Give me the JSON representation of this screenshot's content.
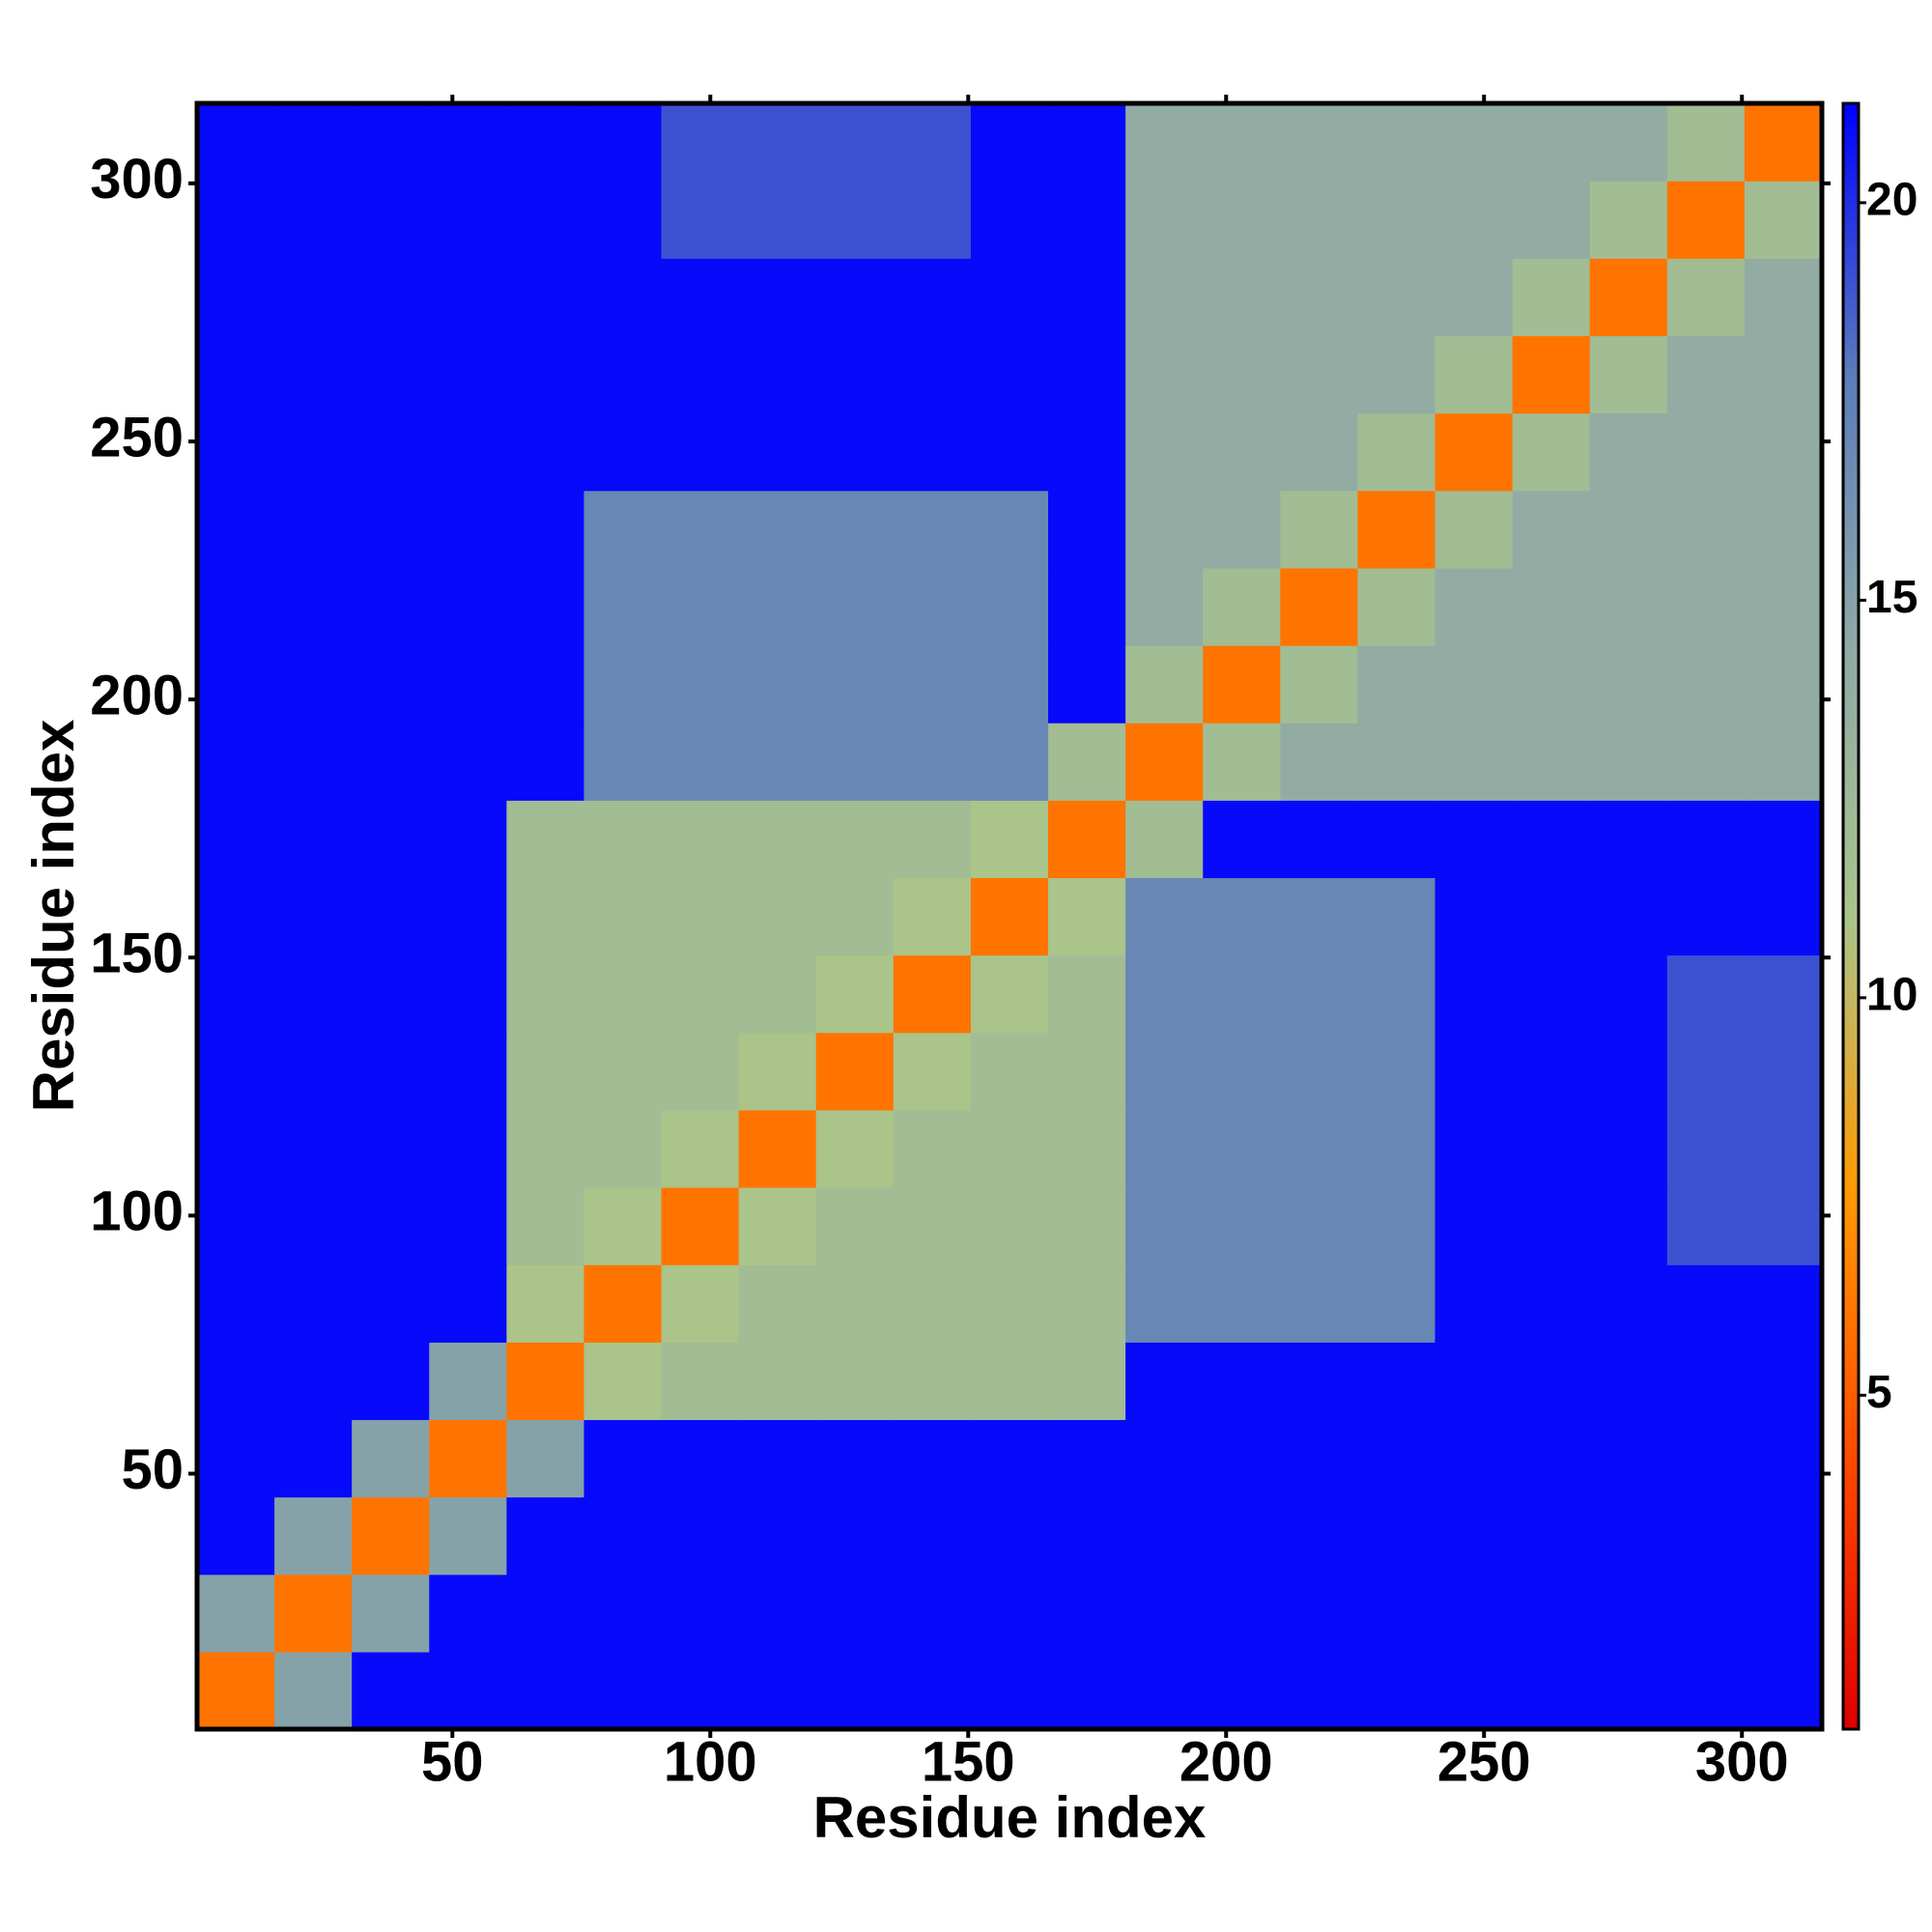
{
  "chart_data": {
    "type": "heatmap",
    "x_label": "Residue index",
    "y_label": "Residue index",
    "x": [
      8,
      23,
      38,
      53,
      68,
      83,
      98,
      113,
      128,
      143,
      158,
      173,
      188,
      203,
      218,
      233,
      248,
      263,
      278,
      293,
      308
    ],
    "y": [
      8,
      23,
      38,
      53,
      68,
      83,
      98,
      113,
      128,
      143,
      158,
      173,
      188,
      203,
      218,
      233,
      248,
      263,
      278,
      293,
      308
    ],
    "z": [
      [
        6,
        15,
        21,
        21,
        21,
        21,
        21,
        21,
        21,
        21,
        21,
        21,
        21,
        21,
        21,
        21,
        21,
        21,
        21,
        21,
        21
      ],
      [
        15,
        6,
        15,
        21,
        21,
        21,
        21,
        21,
        21,
        21,
        21,
        21,
        21,
        21,
        21,
        21,
        21,
        21,
        21,
        21,
        21
      ],
      [
        21,
        15,
        6,
        15,
        21,
        21,
        21,
        21,
        21,
        21,
        21,
        21,
        21,
        21,
        21,
        21,
        21,
        21,
        21,
        21,
        21
      ],
      [
        21,
        21,
        15,
        6,
        15,
        21,
        21,
        21,
        21,
        21,
        21,
        21,
        21,
        21,
        21,
        21,
        21,
        21,
        21,
        21,
        21
      ],
      [
        21,
        21,
        21,
        15,
        6,
        11,
        12,
        12,
        12,
        12,
        12,
        12,
        21,
        21,
        21,
        21,
        21,
        21,
        21,
        21,
        21
      ],
      [
        21,
        21,
        21,
        21,
        11,
        6,
        11,
        12,
        12,
        12,
        12,
        12,
        17,
        17,
        17,
        17,
        21,
        21,
        21,
        21,
        21
      ],
      [
        21,
        21,
        21,
        21,
        12,
        11,
        6,
        11,
        12,
        12,
        12,
        12,
        17,
        17,
        17,
        17,
        21,
        21,
        21,
        19,
        19
      ],
      [
        21,
        21,
        21,
        21,
        12,
        12,
        11,
        6,
        11,
        12,
        12,
        12,
        17,
        17,
        17,
        17,
        21,
        21,
        21,
        19,
        19
      ],
      [
        21,
        21,
        21,
        21,
        12,
        12,
        12,
        11,
        6,
        11,
        12,
        12,
        17,
        17,
        17,
        17,
        21,
        21,
        21,
        19,
        19
      ],
      [
        21,
        21,
        21,
        21,
        12,
        12,
        12,
        12,
        11,
        6,
        11,
        12,
        17,
        17,
        17,
        17,
        21,
        21,
        21,
        19,
        19
      ],
      [
        21,
        21,
        21,
        21,
        12,
        12,
        12,
        12,
        12,
        11,
        6,
        11,
        17,
        17,
        17,
        17,
        21,
        21,
        21,
        21,
        21
      ],
      [
        21,
        21,
        21,
        21,
        12,
        12,
        12,
        12,
        12,
        12,
        11,
        6,
        12,
        21,
        21,
        21,
        21,
        21,
        21,
        21,
        21
      ],
      [
        21,
        21,
        21,
        21,
        21,
        17,
        17,
        17,
        17,
        17,
        17,
        12,
        6,
        12,
        14,
        14,
        14,
        14,
        14,
        14,
        14
      ],
      [
        21,
        21,
        21,
        21,
        21,
        17,
        17,
        17,
        17,
        17,
        17,
        21,
        12,
        6,
        12,
        14,
        14,
        14,
        14,
        14,
        14
      ],
      [
        21,
        21,
        21,
        21,
        21,
        17,
        17,
        17,
        17,
        17,
        17,
        21,
        14,
        12,
        6,
        12,
        14,
        14,
        14,
        14,
        14
      ],
      [
        21,
        21,
        21,
        21,
        21,
        17,
        17,
        17,
        17,
        17,
        17,
        21,
        14,
        14,
        12,
        6,
        12,
        14,
        14,
        14,
        14
      ],
      [
        21,
        21,
        21,
        21,
        21,
        21,
        21,
        21,
        21,
        21,
        21,
        21,
        14,
        14,
        14,
        12,
        6,
        12,
        14,
        14,
        14
      ],
      [
        21,
        21,
        21,
        21,
        21,
        21,
        21,
        21,
        21,
        21,
        21,
        21,
        14,
        14,
        14,
        14,
        12,
        6,
        12,
        14,
        14
      ],
      [
        21,
        21,
        21,
        21,
        21,
        21,
        21,
        21,
        21,
        21,
        21,
        21,
        14,
        14,
        14,
        14,
        14,
        12,
        6,
        12,
        14
      ],
      [
        21,
        21,
        21,
        21,
        21,
        21,
        19,
        19,
        19,
        19,
        21,
        21,
        14,
        14,
        14,
        14,
        14,
        14,
        12,
        6,
        12
      ],
      [
        21,
        21,
        21,
        21,
        21,
        21,
        19,
        19,
        19,
        19,
        21,
        21,
        14,
        14,
        14,
        14,
        14,
        14,
        14,
        12,
        6
      ]
    ],
    "xlim": [
      0.5,
      315.5
    ],
    "ylim": [
      0.5,
      315.5
    ],
    "xticks": [
      50,
      100,
      150,
      200,
      250,
      300
    ],
    "yticks": [
      50,
      100,
      150,
      200,
      250,
      300
    ],
    "zlim": [
      0.8,
      21.25
    ],
    "zticks": [
      5,
      10,
      15,
      20
    ],
    "colormap": [
      "#dd0000",
      "#ff4a00",
      "#ff9a00",
      "#a9c48b",
      "#8fa9a6",
      "#5b7cba",
      "#0000ff"
    ]
  }
}
